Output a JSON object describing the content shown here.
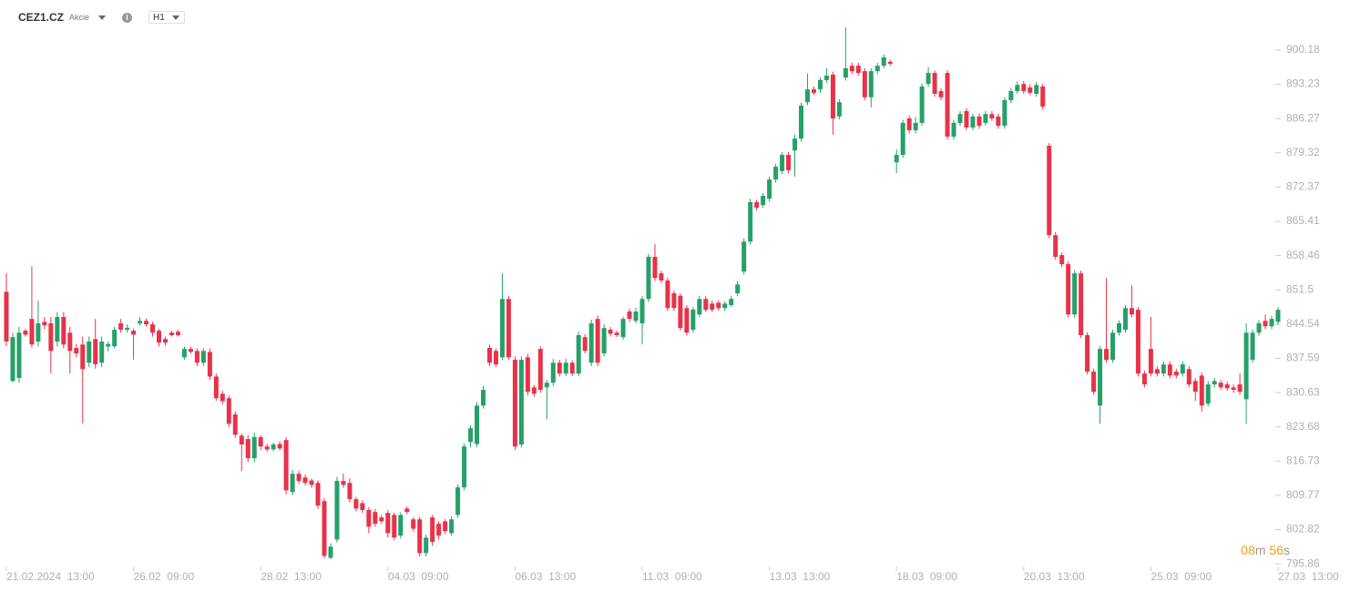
{
  "header": {
    "symbol": "CEZ1.CZ",
    "kind": "Akcie",
    "timeframe": "H1"
  },
  "timer": {
    "minutes": "08",
    "minutes_unit": "m",
    "seconds": "56",
    "seconds_unit": "s"
  },
  "chart_data": {
    "type": "candlestick",
    "up_color": "#26a069",
    "down_color": "#e8324a",
    "ylim": [
      795.7,
      908.5
    ],
    "yticks": [
      795.86,
      802.82,
      809.77,
      816.73,
      823.68,
      830.63,
      837.59,
      844.54,
      851.5,
      858.46,
      865.41,
      872.37,
      879.32,
      886.27,
      893.23,
      900.18
    ],
    "xticks": [
      {
        "value": 0,
        "label": "21.02.2024  13:00"
      },
      {
        "value": 20,
        "label": "26.02  09:00"
      },
      {
        "value": 40,
        "label": "28.02  13:00"
      },
      {
        "value": 60,
        "label": "04.03  09:00"
      },
      {
        "value": 80,
        "label": "06.03  13:00"
      },
      {
        "value": 100,
        "label": "11.03  09:00"
      },
      {
        "value": 120,
        "label": "13.03  13:00"
      },
      {
        "value": 140,
        "label": "18.03  09:00"
      },
      {
        "value": 160,
        "label": "20.03  13:00"
      },
      {
        "value": 180,
        "label": "25.03  09:00"
      },
      {
        "value": 200,
        "label": "27.03  13:00"
      }
    ],
    "open": [
      851.1,
      833.0,
      833.6,
      843.2,
      845.6,
      841.0,
      845.0,
      844.7,
      841.0,
      846.0,
      842.8,
      839.7,
      840.4,
      836.7,
      841.5,
      836.7,
      840.0,
      840.05,
      844.7,
      843.4,
      843.2,
      844.7,
      845.2,
      844.5,
      843.2,
      841.5,
      842.8,
      843.0,
      837.8,
      839.5,
      839.1,
      836.7,
      838.9,
      833.9,
      830.4,
      829.5,
      826.2,
      821.9,
      821.2,
      817.3,
      821.6,
      819.7,
      819.1,
      820.2,
      821.0,
      810.45,
      814.15,
      813.4,
      812.8,
      812.3,
      808.6,
      797.1,
      800.8,
      812.7,
      812.3,
      809.0,
      808.2,
      806.8,
      806.4,
      805.3,
      806.2,
      805.8,
      801.6,
      807.1,
      804.9,
      804.9,
      798.05,
      805.3,
      804.0,
      804.5,
      802.1,
      805.8,
      811.4,
      820.6,
      820.2,
      828.0,
      839.7,
      839.1,
      837.8,
      849.65,
      837.3,
      820.1,
      837.8,
      831.7,
      839.5,
      831.7,
      832.65,
      836.7,
      834.5,
      836.7,
      834.5,
      841.9,
      836.7,
      845.6,
      838.6,
      843.4,
      842.8,
      841.9,
      847.1,
      845.2,
      844.7,
      849.65,
      858.2,
      854.85,
      853.4,
      850.8,
      850.3,
      847.8,
      843.4,
      846.5,
      849.65,
      848.7,
      848.9,
      847.8,
      848.4,
      850.8,
      855.2,
      861.3,
      869.3,
      868.7,
      870.0,
      873.9,
      875.6,
      878.9,
      879.8,
      882.2,
      889.6,
      892.2,
      892.2,
      894.1,
      895.2,
      886.7,
      894.6,
      897.0,
      897.0,
      895.9,
      890.6,
      895.9,
      897.0,
      897.8,
      877.4,
      878.9,
      886.3,
      883.9,
      885.4,
      893.3,
      895.55,
      891.85,
      895.55,
      882.6,
      885.4,
      887.8,
      884.45,
      886.7,
      885.4,
      887.2,
      886.7,
      884.8,
      890.0,
      891.85,
      893.3,
      892.6,
      891.3,
      892.8,
      880.75,
      862.6,
      858.55,
      856.7,
      846.5,
      854.85,
      842.3,
      834.9,
      828.0,
      839.5,
      837.3,
      842.8,
      843.4,
      847.8,
      847.45,
      834.5,
      839.5,
      835.4,
      834.5,
      836.35,
      834.9,
      834.5,
      835.4,
      833.0,
      834.1,
      828.4,
      832.3,
      832.65,
      832.3,
      831.7,
      832.3,
      829.3,
      837.3,
      842.8,
      845.2,
      844.1,
      845.0
    ],
    "high": [
      854.9,
      842.8,
      844.0,
      843.6,
      856.3,
      849.3,
      846.0,
      846.0,
      847.0,
      847.0,
      844.0,
      840.5,
      842.0,
      842.0,
      845.6,
      842.0,
      841.0,
      844.0,
      845.6,
      844.5,
      843.6,
      846.0,
      845.7,
      845.0,
      843.6,
      842.0,
      843.2,
      843.4,
      840.0,
      840.0,
      839.6,
      839.6,
      839.6,
      834.5,
      831.0,
      830.0,
      826.8,
      822.3,
      822.0,
      822.5,
      822.0,
      820.2,
      820.5,
      820.8,
      821.6,
      815.0,
      814.8,
      814.0,
      813.2,
      812.8,
      809.2,
      800.0,
      813.5,
      814.2,
      813.2,
      809.5,
      808.8,
      807.4,
      807.0,
      805.8,
      806.8,
      806.3,
      806.3,
      807.5,
      805.4,
      805.4,
      801.8,
      805.8,
      804.5,
      805.0,
      805.5,
      812.0,
      820.3,
      824.0,
      828.7,
      832.0,
      840.4,
      839.6,
      854.85,
      850.3,
      838.0,
      838.0,
      838.5,
      832.2,
      840.05,
      833.2,
      837.5,
      837.3,
      837.5,
      837.2,
      843.0,
      842.5,
      845.4,
      846.3,
      844.5,
      844.0,
      843.2,
      846.0,
      847.7,
      847.8,
      850.3,
      858.8,
      860.8,
      855.4,
      854.0,
      851.4,
      850.8,
      848.4,
      848.0,
      850.3,
      850.2,
      849.3,
      849.4,
      849.2,
      850.2,
      853.3,
      862.0,
      870.0,
      869.8,
      871.2,
      874.5,
      877.1,
      879.5,
      879.5,
      883.0,
      889.5,
      895.4,
      892.8,
      894.7,
      896.5,
      895.8,
      890.2,
      904.8,
      897.6,
      897.6,
      896.5,
      896.5,
      897.6,
      899.3,
      898.2,
      880.0,
      886.0,
      886.9,
      886.6,
      893.4,
      896.7,
      896.0,
      892.4,
      896.1,
      886.0,
      887.8,
      888.4,
      887.3,
      887.3,
      887.8,
      887.8,
      887.3,
      890.6,
      892.5,
      893.8,
      893.9,
      893.2,
      893.7,
      893.3,
      881.3,
      863.2,
      859.1,
      857.3,
      855.4,
      855.4,
      842.9,
      835.5,
      840.1,
      853.9,
      843.4,
      845.3,
      848.4,
      852.4,
      848.0,
      835.1,
      846.0,
      836.0,
      837.0,
      837.0,
      835.5,
      837.0,
      836.0,
      833.6,
      834.7,
      833.0,
      833.6,
      833.2,
      832.9,
      832.3,
      834.5,
      844.7,
      843.4,
      845.3,
      846.5,
      846.2,
      848.0
    ],
    "low": [
      840.0,
      832.7,
      832.6,
      842.0,
      839.7,
      840.0,
      843.5,
      834.5,
      840.0,
      839.6,
      834.5,
      837.8,
      824.4,
      835.8,
      835.5,
      835.8,
      839.0,
      839.6,
      842.8,
      842.8,
      837.3,
      844.2,
      844.0,
      842.0,
      840.0,
      840.2,
      842.0,
      842.0,
      837.3,
      838.5,
      836.0,
      836.0,
      833.2,
      829.0,
      828.3,
      823.6,
      821.5,
      814.7,
      816.5,
      816.5,
      819.0,
      818.7,
      818.7,
      818.9,
      810.0,
      809.8,
      812.2,
      811.8,
      811.3,
      807.0,
      797.0,
      796.8,
      800.2,
      811.3,
      808.4,
      806.5,
      806.2,
      802.1,
      803.4,
      804.0,
      801.2,
      800.6,
      801.0,
      806.0,
      802.4,
      797.4,
      797.4,
      799.5,
      800.8,
      801.9,
      801.6,
      805.2,
      810.8,
      819.5,
      819.5,
      827.4,
      836.0,
      835.8,
      837.3,
      837.3,
      819.0,
      819.5,
      830.0,
      829.8,
      830.6,
      825.25,
      832.0,
      833.9,
      834.0,
      834.0,
      834.0,
      838.6,
      836.0,
      836.0,
      838.0,
      842.0,
      841.9,
      841.4,
      845.0,
      844.7,
      840.4,
      849.0,
      853.3,
      852.8,
      847.2,
      847.2,
      843.2,
      842.2,
      842.8,
      846.0,
      847.0,
      847.0,
      847.3,
      847.2,
      848.0,
      850.2,
      854.6,
      860.7,
      867.6,
      868.2,
      869.4,
      873.3,
      875.0,
      875.2,
      874.5,
      881.6,
      889.0,
      891.0,
      891.5,
      893.5,
      883.0,
      886.1,
      894.0,
      895.3,
      895.0,
      890.0,
      888.5,
      895.3,
      896.5,
      897.0,
      875.2,
      878.3,
      883.3,
      883.3,
      884.8,
      892.7,
      890.7,
      890.0,
      882.0,
      882.0,
      884.8,
      883.9,
      883.9,
      884.2,
      884.8,
      885.8,
      884.2,
      884.2,
      889.4,
      891.3,
      891.3,
      891.0,
      890.7,
      888.1,
      862.0,
      857.6,
      856.1,
      845.9,
      845.9,
      841.7,
      834.3,
      830.2,
      824.3,
      836.7,
      836.7,
      842.2,
      842.8,
      845.9,
      833.9,
      831.7,
      833.9,
      833.9,
      833.9,
      833.5,
      833.5,
      833.9,
      831.7,
      828.95,
      826.7,
      827.8,
      831.7,
      831.2,
      831.0,
      830.6,
      830.2,
      824.3,
      836.7,
      842.2,
      843.5,
      843.5,
      844.4
    ],
    "close": [
      841.0,
      841.9,
      842.8,
      842.4,
      840.4,
      844.7,
      844.3,
      839.1,
      846.0,
      840.4,
      839.1,
      838.6,
      835.4,
      841.0,
      836.4,
      841.0,
      840.5,
      843.4,
      843.4,
      843.8,
      842.4,
      845.2,
      844.5,
      842.8,
      840.8,
      840.8,
      842.3,
      842.3,
      839.5,
      838.9,
      836.7,
      839.1,
      833.9,
      829.5,
      828.9,
      824.3,
      822.1,
      820.1,
      817.3,
      821.6,
      819.7,
      819.1,
      820.1,
      819.3,
      810.8,
      814.15,
      812.7,
      812.3,
      811.9,
      807.7,
      797.5,
      799.35,
      812.7,
      811.9,
      809.0,
      807.1,
      806.8,
      803.4,
      804.0,
      804.5,
      802.1,
      801.2,
      805.8,
      806.4,
      803.0,
      798.05,
      801.2,
      800.3,
      801.6,
      802.5,
      804.9,
      811.4,
      819.7,
      823.4,
      828.0,
      831.2,
      836.7,
      836.35,
      849.65,
      837.8,
      819.7,
      837.3,
      830.8,
      830.4,
      831.2,
      832.65,
      836.7,
      834.5,
      836.7,
      834.5,
      842.3,
      839.1,
      844.7,
      836.7,
      843.75,
      842.6,
      842.3,
      845.6,
      845.6,
      847.1,
      849.65,
      858.2,
      853.9,
      853.4,
      847.8,
      847.8,
      843.75,
      842.8,
      847.5,
      849.65,
      847.45,
      847.45,
      847.8,
      848.7,
      849.65,
      852.6,
      861.3,
      869.3,
      868.2,
      870.6,
      873.9,
      876.5,
      878.9,
      875.8,
      882.2,
      888.9,
      892.2,
      891.5,
      894.1,
      895.0,
      886.3,
      889.6,
      896.5,
      895.9,
      895.55,
      890.6,
      895.9,
      897.0,
      898.7,
      897.4,
      878.9,
      885.4,
      883.9,
      885.4,
      892.8,
      895.55,
      891.3,
      890.6,
      882.6,
      885.4,
      887.2,
      884.45,
      886.7,
      884.8,
      887.2,
      886.3,
      884.8,
      890.0,
      891.85,
      893.1,
      891.85,
      891.5,
      893.1,
      888.7,
      862.6,
      858.2,
      856.7,
      846.5,
      854.85,
      842.3,
      834.9,
      830.8,
      839.5,
      837.3,
      842.8,
      844.7,
      847.8,
      846.5,
      834.5,
      832.3,
      834.5,
      834.5,
      836.35,
      834.1,
      834.1,
      836.35,
      832.3,
      830.8,
      828.0,
      832.3,
      833.0,
      831.7,
      831.5,
      831.2,
      830.8,
      842.8,
      842.8,
      844.7,
      844.1,
      845.6,
      847.45
    ]
  }
}
